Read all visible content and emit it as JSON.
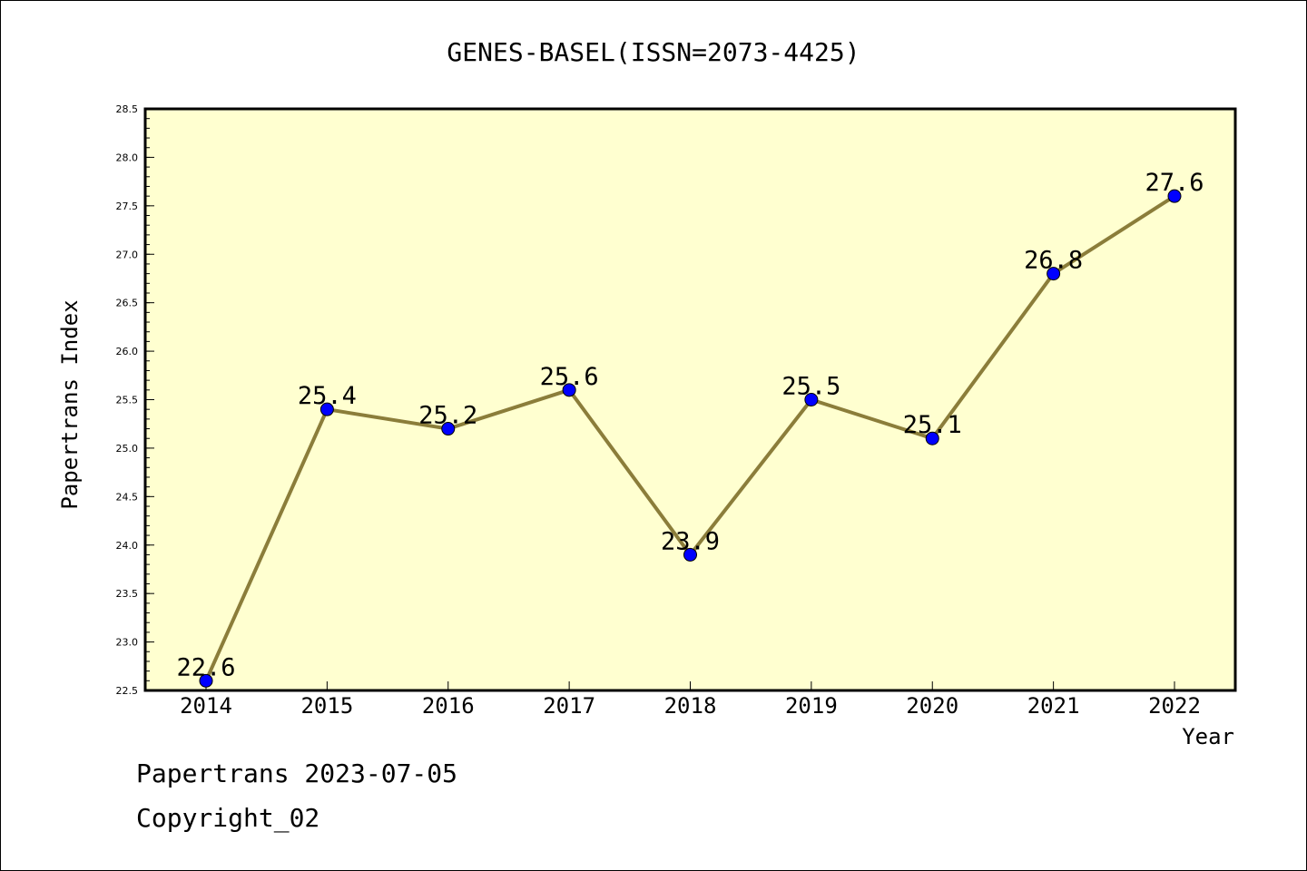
{
  "chart_data": {
    "type": "line",
    "title": "GENES-BASEL(ISSN=2073-4425)",
    "xlabel": "Year",
    "ylabel": "Papertrans Index",
    "categories": [
      "2014",
      "2015",
      "2016",
      "2017",
      "2018",
      "2019",
      "2020",
      "2021",
      "2022"
    ],
    "series": [
      {
        "values": [
          22.6,
          25.4,
          25.2,
          25.6,
          23.9,
          25.5,
          25.1,
          26.8,
          27.6
        ],
        "labels": [
          "22.6",
          "25.4",
          "25.2",
          "25.6",
          "23.9",
          "25.5",
          "25.1",
          "26.8",
          "27.6"
        ]
      }
    ],
    "ylim": [
      22.5,
      28.5
    ],
    "yticks": [
      "22.5",
      "23.0",
      "23.5",
      "24.0",
      "24.5",
      "25.0",
      "25.5",
      "26.0",
      "26.5",
      "27.0",
      "27.5",
      "28.0",
      "28.5"
    ],
    "grid": false,
    "legend": "none",
    "colors": {
      "line": "#8b7d3a",
      "marker": "#0000ff",
      "plot_background": "#ffffd0"
    }
  },
  "footer": {
    "source": "Papertrans 2023-07-05",
    "copyright": "Copyright_02"
  }
}
